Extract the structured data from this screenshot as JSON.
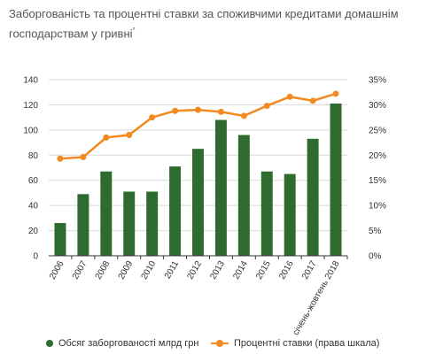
{
  "title": "Заборгованість та процентні ставки за споживчими кредитами домашнім господарствам у гривні",
  "title_sup": "°",
  "colors": {
    "bars": "#2e6b2f",
    "line": "#f28a21",
    "grid": "#d9d9d9",
    "axis": "#333333"
  },
  "legend": {
    "bars": "Обсяг заборгованості млрд грн",
    "line": "Процентні ставки (права шкала)"
  },
  "chart_data": {
    "type": "bar+line",
    "categories": [
      "2006",
      "2007",
      "2008",
      "2009",
      "2010",
      "2011",
      "2012",
      "2013",
      "2014",
      "2015",
      "2016",
      "2017",
      "січень-жовтень 2018"
    ],
    "series": [
      {
        "name": "Обсяг заборгованості млрд грн",
        "type": "bar",
        "axis": "left",
        "values": [
          26,
          49,
          67,
          51,
          51,
          71,
          85,
          108,
          96,
          67,
          65,
          93,
          121
        ]
      },
      {
        "name": "Процентні ставки (права шкала)",
        "type": "line",
        "axis": "right",
        "values": [
          19.3,
          19.6,
          23.5,
          24.0,
          27.5,
          28.8,
          29.0,
          28.6,
          27.8,
          29.8,
          31.6,
          30.8,
          32.2
        ]
      }
    ],
    "y_left": {
      "min": 0,
      "max": 140,
      "ticks": [
        "0",
        "20",
        "40",
        "60",
        "80",
        "100",
        "120",
        "140"
      ]
    },
    "y_right": {
      "min": 0,
      "max": 35,
      "ticks": [
        "0%",
        "5%",
        "10%",
        "15%",
        "20%",
        "25%",
        "30%",
        "35%"
      ]
    },
    "grid": true,
    "legend_position": "bottom"
  }
}
